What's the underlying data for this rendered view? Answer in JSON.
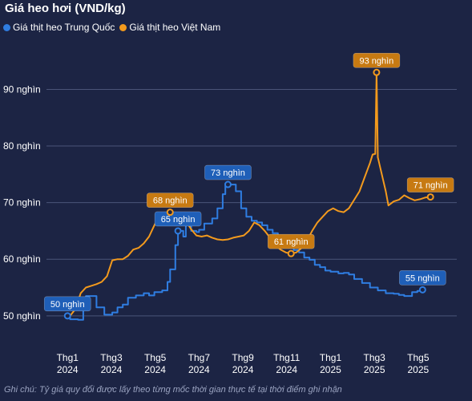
{
  "chart_data": {
    "type": "line",
    "title": "Giá heo hơi (VND/kg)",
    "note": "Ghi chú: Tỷ giá quy đổi được lấy theo từng mốc thời gian thực tế tại thời điểm ghi nhận",
    "ylim": [
      47,
      98
    ],
    "y_ticks": [
      {
        "value": 50,
        "label": "50 nghìn"
      },
      {
        "value": 60,
        "label": "60 nghìn"
      },
      {
        "value": 70,
        "label": "70 nghìn"
      },
      {
        "value": 80,
        "label": "80 nghìn"
      },
      {
        "value": 90,
        "label": "90 nghìn"
      }
    ],
    "xlim": [
      2023.92,
      2025.48
    ],
    "x_ticks": [
      {
        "value": 2024.0,
        "line1": "Thg1",
        "line2": "2024"
      },
      {
        "value": 2024.1667,
        "line1": "Thg3",
        "line2": "2024"
      },
      {
        "value": 2024.3333,
        "line1": "Thg5",
        "line2": "2024"
      },
      {
        "value": 2024.5,
        "line1": "Thg7",
        "line2": "2024"
      },
      {
        "value": 2024.6667,
        "line1": "Thg9",
        "line2": "2024"
      },
      {
        "value": 2024.8333,
        "line1": "Thg11",
        "line2": "2024"
      },
      {
        "value": 2025.0,
        "line1": "Thg1",
        "line2": "2025"
      },
      {
        "value": 2025.1667,
        "line1": "Thg3",
        "line2": "2025"
      },
      {
        "value": 2025.3333,
        "line1": "Thg5",
        "line2": "2025"
      }
    ],
    "grid": true,
    "legend_position": "top-left",
    "series": [
      {
        "name": "Giá thịt heo Trung Quốc",
        "color": "#2f7de1",
        "step": true,
        "points": [
          [
            2024.0,
            50.0
          ],
          [
            2024.01,
            49.4
          ],
          [
            2024.04,
            49.3
          ],
          [
            2024.06,
            52.5
          ],
          [
            2024.07,
            53.5
          ],
          [
            2024.1,
            53.5
          ],
          [
            2024.11,
            51.5
          ],
          [
            2024.14,
            50.2
          ],
          [
            2024.17,
            50.6
          ],
          [
            2024.19,
            51.5
          ],
          [
            2024.21,
            52.0
          ],
          [
            2024.23,
            53.2
          ],
          [
            2024.26,
            53.6
          ],
          [
            2024.29,
            54.0
          ],
          [
            2024.31,
            53.6
          ],
          [
            2024.33,
            54.2
          ],
          [
            2024.36,
            54.5
          ],
          [
            2024.38,
            56.0
          ],
          [
            2024.39,
            58.2
          ],
          [
            2024.41,
            62.5
          ],
          [
            2024.42,
            65.0
          ],
          [
            2024.44,
            64.0
          ],
          [
            2024.45,
            66.8
          ],
          [
            2024.47,
            65.0
          ],
          [
            2024.49,
            64.8
          ],
          [
            2024.5,
            65.2
          ],
          [
            2024.52,
            66.3
          ],
          [
            2024.55,
            67.2
          ],
          [
            2024.57,
            69.0
          ],
          [
            2024.59,
            71.5
          ],
          [
            2024.6,
            73.0
          ],
          [
            2024.62,
            73.2
          ],
          [
            2024.64,
            72.0
          ],
          [
            2024.66,
            69.0
          ],
          [
            2024.68,
            67.5
          ],
          [
            2024.7,
            66.8
          ],
          [
            2024.72,
            66.5
          ],
          [
            2024.74,
            66.0
          ],
          [
            2024.76,
            65.2
          ],
          [
            2024.78,
            64.6
          ],
          [
            2024.8,
            64.2
          ],
          [
            2024.82,
            63.0
          ],
          [
            2024.84,
            62.0
          ],
          [
            2024.86,
            61.6
          ],
          [
            2024.88,
            61.2
          ],
          [
            2024.9,
            60.3
          ],
          [
            2024.92,
            59.9
          ],
          [
            2024.94,
            59.0
          ],
          [
            2024.96,
            58.6
          ],
          [
            2024.98,
            58.0
          ],
          [
            2025.0,
            57.8
          ],
          [
            2025.03,
            57.5
          ],
          [
            2025.05,
            57.6
          ],
          [
            2025.07,
            57.3
          ],
          [
            2025.09,
            56.5
          ],
          [
            2025.12,
            55.8
          ],
          [
            2025.15,
            55.0
          ],
          [
            2025.18,
            54.5
          ],
          [
            2025.21,
            54.0
          ],
          [
            2025.24,
            53.9
          ],
          [
            2025.26,
            53.7
          ],
          [
            2025.28,
            53.5
          ],
          [
            2025.31,
            54.2
          ],
          [
            2025.33,
            54.4
          ],
          [
            2025.35,
            54.6
          ]
        ]
      },
      {
        "name": "Giá thịt heo Việt Nam",
        "color": "#f39a1d",
        "step": false,
        "points": [
          [
            2024.0,
            49.7
          ],
          [
            2024.01,
            50.0
          ],
          [
            2024.03,
            51.2
          ],
          [
            2024.05,
            54.0
          ],
          [
            2024.07,
            55.0
          ],
          [
            2024.09,
            55.3
          ],
          [
            2024.11,
            55.6
          ],
          [
            2024.13,
            56.0
          ],
          [
            2024.15,
            57.0
          ],
          [
            2024.17,
            59.8
          ],
          [
            2024.19,
            60.0
          ],
          [
            2024.21,
            60.0
          ],
          [
            2024.23,
            60.6
          ],
          [
            2024.25,
            61.7
          ],
          [
            2024.27,
            62.0
          ],
          [
            2024.29,
            62.8
          ],
          [
            2024.31,
            64.0
          ],
          [
            2024.33,
            66.0
          ],
          [
            2024.35,
            67.8
          ],
          [
            2024.37,
            68.0
          ],
          [
            2024.39,
            68.3
          ],
          [
            2024.41,
            68.0
          ],
          [
            2024.43,
            67.8
          ],
          [
            2024.45,
            66.8
          ],
          [
            2024.47,
            65.3
          ],
          [
            2024.49,
            64.2
          ],
          [
            2024.51,
            64.0
          ],
          [
            2024.53,
            64.2
          ],
          [
            2024.55,
            63.8
          ],
          [
            2024.57,
            63.5
          ],
          [
            2024.59,
            63.4
          ],
          [
            2024.61,
            63.5
          ],
          [
            2024.63,
            63.8
          ],
          [
            2024.65,
            64.0
          ],
          [
            2024.67,
            64.2
          ],
          [
            2024.69,
            65.0
          ],
          [
            2024.71,
            66.5
          ],
          [
            2024.73,
            66.0
          ],
          [
            2024.75,
            65.0
          ],
          [
            2024.77,
            63.8
          ],
          [
            2024.79,
            62.5
          ],
          [
            2024.81,
            61.7
          ],
          [
            2024.83,
            61.2
          ],
          [
            2024.85,
            61.0
          ],
          [
            2024.87,
            61.2
          ],
          [
            2024.89,
            62.0
          ],
          [
            2024.91,
            63.2
          ],
          [
            2024.93,
            65.0
          ],
          [
            2024.95,
            66.5
          ],
          [
            2024.97,
            67.5
          ],
          [
            2024.99,
            68.5
          ],
          [
            2025.01,
            69.0
          ],
          [
            2025.03,
            68.5
          ],
          [
            2025.05,
            68.3
          ],
          [
            2025.07,
            69.0
          ],
          [
            2025.09,
            70.5
          ],
          [
            2025.11,
            72.0
          ],
          [
            2025.13,
            74.5
          ],
          [
            2025.15,
            77.0
          ],
          [
            2025.16,
            78.5
          ],
          [
            2025.17,
            78.6
          ],
          [
            2025.175,
            93.0
          ],
          [
            2025.18,
            78.0
          ],
          [
            2025.19,
            76.0
          ],
          [
            2025.21,
            72.0
          ],
          [
            2025.22,
            69.5
          ],
          [
            2025.24,
            70.2
          ],
          [
            2025.26,
            70.5
          ],
          [
            2025.28,
            71.3
          ],
          [
            2025.3,
            70.8
          ],
          [
            2025.32,
            70.4
          ],
          [
            2025.34,
            70.6
          ],
          [
            2025.36,
            70.9
          ],
          [
            2025.38,
            71.0
          ]
        ]
      }
    ],
    "annotations": [
      {
        "series": 0,
        "x": 2024.0,
        "y": 50.0,
        "label": "50 nghìn",
        "color": "#1f5fb8"
      },
      {
        "series": 0,
        "x": 2024.42,
        "y": 65.0,
        "label": "65 nghìn",
        "color": "#1f5fb8"
      },
      {
        "series": 0,
        "x": 2024.61,
        "y": 73.2,
        "label": "73 nghìn",
        "color": "#1f5fb8"
      },
      {
        "series": 0,
        "x": 2025.35,
        "y": 54.6,
        "label": "55 nghìn",
        "color": "#1f5fb8"
      },
      {
        "series": 1,
        "x": 2024.39,
        "y": 68.3,
        "label": "68 nghìn",
        "color": "#c77a12"
      },
      {
        "series": 1,
        "x": 2024.85,
        "y": 61.0,
        "label": "61 nghìn",
        "color": "#c77a12"
      },
      {
        "series": 1,
        "x": 2025.175,
        "y": 93.0,
        "label": "93 nghìn",
        "color": "#c77a12"
      },
      {
        "series": 1,
        "x": 2025.38,
        "y": 71.0,
        "label": "71 nghìn",
        "color": "#c77a12"
      }
    ]
  }
}
